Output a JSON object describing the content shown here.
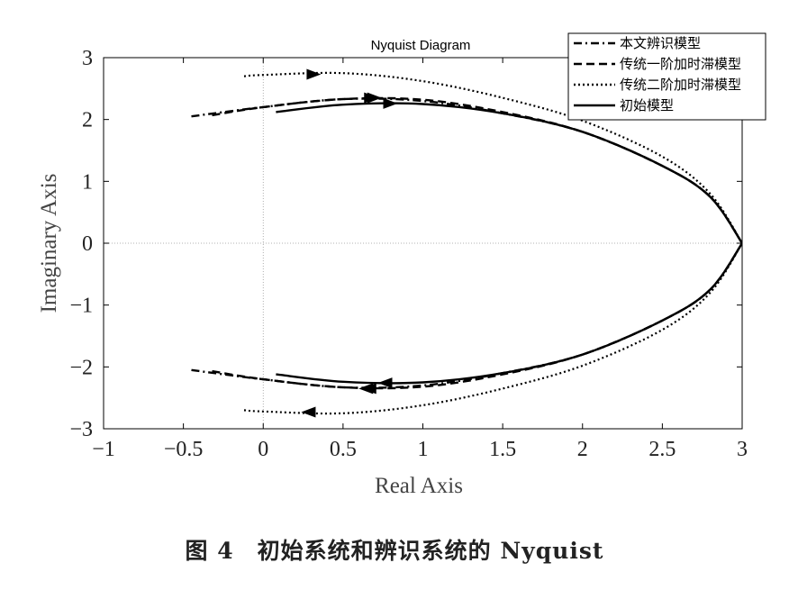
{
  "chart_data": {
    "type": "line",
    "title": "Nyquist Diagram",
    "xlabel": "Real Axis",
    "ylabel": "Imaginary Axis",
    "xlim": [
      -1,
      3
    ],
    "ylim": [
      -3,
      3
    ],
    "xticks": [
      -1,
      -0.5,
      0,
      0.5,
      1,
      1.5,
      2,
      2.5,
      3
    ],
    "yticks": [
      -3,
      -2,
      -1,
      0,
      1,
      2,
      3
    ],
    "xtick_labels": [
      "−1",
      "−0.5",
      "0",
      "0.5",
      "1",
      "1.5",
      "2",
      "2.5",
      "3"
    ],
    "ytick_labels": [
      "−3",
      "−2",
      "−1",
      "0",
      "1",
      "2",
      "3"
    ],
    "legend_position": "top-right",
    "series": [
      {
        "name": "本文辨识模型",
        "style": "dashdot",
        "x": [
          -0.45,
          0.0,
          0.5,
          1.0,
          1.5,
          2.0,
          2.5,
          2.8,
          3.0
        ],
        "y": [
          2.05,
          2.2,
          2.33,
          2.3,
          2.1,
          1.8,
          1.25,
          0.75,
          0.0
        ]
      },
      {
        "name": "传统一阶加时滞模型",
        "style": "dashed",
        "x": [
          -0.32,
          0.0,
          0.5,
          1.0,
          1.5,
          2.0,
          2.5,
          2.8,
          3.0
        ],
        "y": [
          2.07,
          2.2,
          2.33,
          2.32,
          2.12,
          1.8,
          1.25,
          0.75,
          0.0
        ]
      },
      {
        "name": "传统二阶加时滞模型",
        "style": "dotted",
        "x": [
          -0.12,
          0.0,
          0.5,
          1.0,
          1.5,
          2.0,
          2.5,
          2.8,
          3.0
        ],
        "y": [
          2.7,
          2.72,
          2.75,
          2.62,
          2.35,
          1.98,
          1.4,
          0.8,
          0.0
        ]
      },
      {
        "name": "初始模型",
        "style": "solid",
        "x": [
          0.08,
          0.5,
          1.0,
          1.5,
          2.0,
          2.5,
          2.8,
          3.0
        ],
        "y": [
          2.12,
          2.24,
          2.25,
          2.1,
          1.8,
          1.25,
          0.75,
          0.0
        ]
      }
    ],
    "arrows": [
      {
        "series": "本文辨识模型",
        "x": 0.68,
        "y": 2.35
      },
      {
        "series": "传统一阶加时滞模型",
        "x": 0.66,
        "y": 2.35
      },
      {
        "series": "传统二阶加时滞模型",
        "x": 0.3,
        "y": 2.73
      },
      {
        "series": "初始模型",
        "x": 0.78,
        "y": 2.26
      }
    ]
  },
  "caption": "图 4　初始系统和辨识系统的 Nyquist"
}
